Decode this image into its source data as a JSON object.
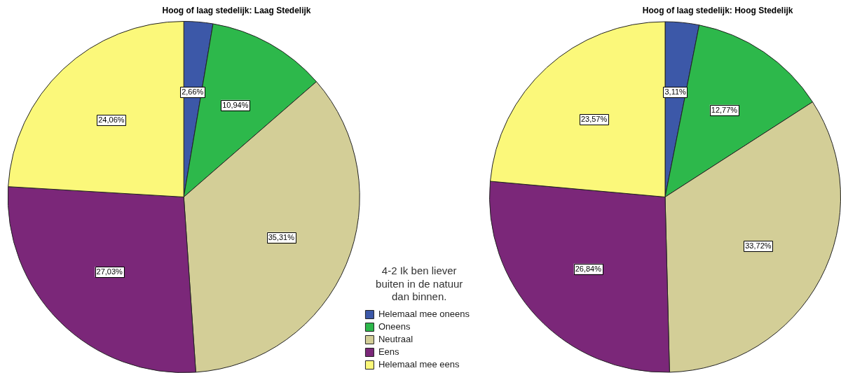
{
  "chart_data": [
    {
      "type": "pie",
      "title": "Hoog of laag stedelijk: Laag Stedelijk",
      "categories": [
        "Helemaal mee oneens",
        "Oneens",
        "Neutraal",
        "Eens",
        "Helemaal mee eens"
      ],
      "values": [
        2.66,
        10.94,
        35.31,
        27.03,
        24.06
      ],
      "colors": [
        "#3c58a8",
        "#2db84b",
        "#d3ce97",
        "#7b2779",
        "#fbf87a"
      ],
      "value_labels": [
        "2,66%",
        "10,94%",
        "35,31%",
        "27,03%",
        "24,06%"
      ],
      "legend": "bottom right",
      "legend_title": "4-2 Ik ben liever buiten in de natuur dan binnen."
    },
    {
      "type": "pie",
      "title": "Hoog of laag stedelijk: Hoog Stedelijk",
      "categories": [
        null,
        null,
        null,
        null,
        null
      ],
      "values": [
        3.11,
        12.77,
        33.72,
        26.84,
        23.57
      ],
      "colors": [
        "#3c58a8",
        "#2db84b",
        "#d3ce97",
        "#7b2779",
        "#fbf87a"
      ],
      "value_labels": [
        "3,11%",
        "12,77%",
        "33,72%",
        "26,84%",
        "23,57%"
      ],
      "legend": false
    }
  ]
}
